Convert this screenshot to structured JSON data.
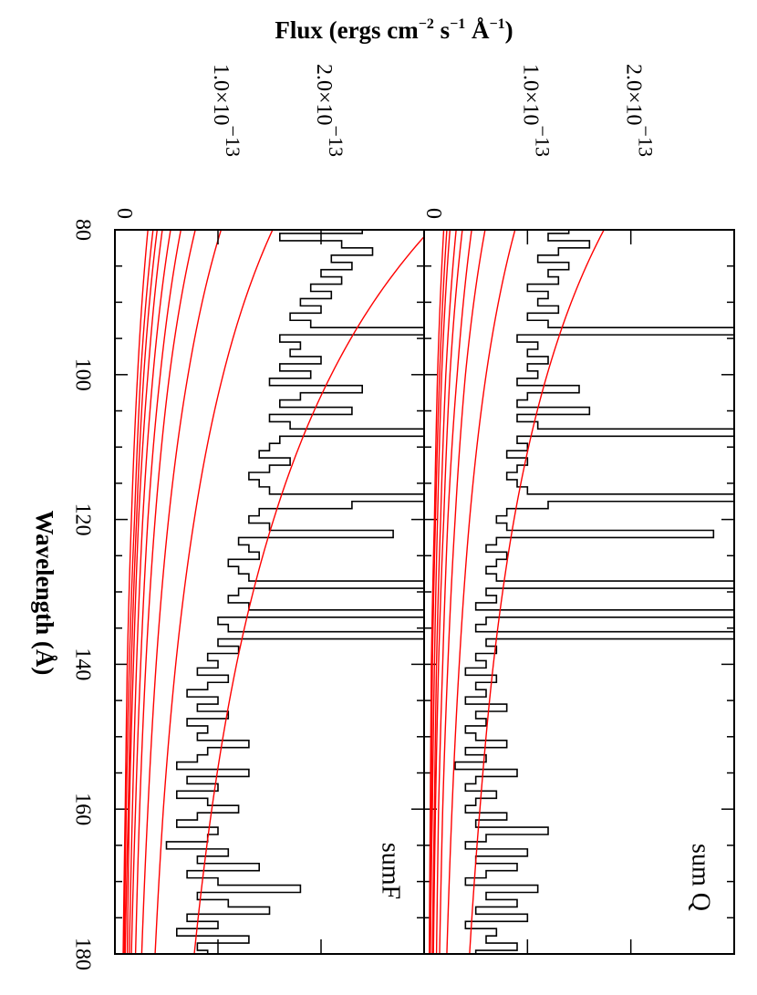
{
  "chart_data": {
    "type": "line",
    "orientation": "rotated 90 degrees clockwise",
    "xlabel": "Wavelength (Å)",
    "ylabel_main": "Flux (ergs cm",
    "ylabel_parts": [
      "Flux (ergs cm",
      "−2",
      " s",
      "−1",
      " Å",
      "−1",
      ")"
    ],
    "xlim": [
      80,
      180
    ],
    "x_ticks": [
      "80",
      "100",
      "120",
      "140",
      "160",
      "180"
    ],
    "x_tick_values": [
      80,
      100,
      120,
      140,
      160,
      180
    ],
    "x_minor_step": 5,
    "y_units": "1e-13",
    "y_tick_values": [
      0,
      1.0,
      2.0
    ],
    "y_tick_labels": [
      {
        "main": "0",
        "exp": ""
      },
      {
        "main": "1.0×10",
        "exp": "−13"
      },
      {
        "main": "2.0×10",
        "exp": "−13"
      }
    ],
    "grid": false,
    "panels": [
      {
        "label": "sumF",
        "ylim": [
          0,
          3.0
        ],
        "spectrum_color": "#000000",
        "spectrum": {
          "x_start": 80,
          "x_step": 1,
          "values": [
            2.4,
            1.6,
            2.2,
            2.5,
            2.1,
            2.3,
            2.0,
            2.2,
            1.9,
            2.1,
            1.8,
            2.0,
            1.7,
            1.9,
            3.5,
            1.6,
            1.8,
            1.7,
            2.0,
            1.6,
            1.9,
            1.5,
            2.4,
            1.8,
            1.6,
            2.3,
            1.5,
            1.7,
            3.5,
            1.6,
            1.5,
            1.4,
            1.7,
            1.5,
            1.3,
            1.4,
            1.5,
            3.5,
            2.3,
            1.4,
            1.3,
            1.5,
            2.7,
            1.2,
            1.3,
            1.4,
            1.1,
            1.2,
            1.3,
            3.5,
            1.2,
            1.1,
            1.3,
            3.5,
            1.0,
            1.1,
            3.5,
            1.0,
            1.2,
            0.9,
            1.0,
            0.8,
            1.1,
            0.9,
            0.7,
            1.0,
            0.8,
            1.1,
            0.7,
            0.9,
            0.8,
            1.3,
            0.9,
            0.8,
            0.6,
            1.3,
            0.7,
            1.0,
            0.6,
            0.9,
            1.2,
            0.8,
            0.6,
            1.0,
            0.9,
            0.5,
            1.1,
            0.8,
            1.4,
            0.7,
            1.0,
            1.8,
            0.8,
            1.1,
            1.5,
            0.7,
            1.0,
            0.6,
            1.3,
            0.8,
            0.9
          ]
        },
        "model_color": "#ff0000",
        "model_x": [
          80,
          100,
          120,
          140,
          160,
          180
        ],
        "models": [
          [
            3.06,
            2.1,
            1.54,
            1.18,
            0.94,
            0.77
          ],
          [
            1.53,
            1.05,
            0.77,
            0.59,
            0.47,
            0.39
          ],
          [
            1.03,
            0.71,
            0.52,
            0.4,
            0.32,
            0.26
          ],
          [
            0.78,
            0.53,
            0.39,
            0.3,
            0.24,
            0.2
          ],
          [
            0.64,
            0.44,
            0.32,
            0.25,
            0.2,
            0.16
          ],
          [
            0.54,
            0.37,
            0.27,
            0.21,
            0.17,
            0.14
          ],
          [
            0.46,
            0.32,
            0.23,
            0.18,
            0.14,
            0.12
          ],
          [
            0.41,
            0.28,
            0.21,
            0.16,
            0.13,
            0.1
          ],
          [
            0.37,
            0.25,
            0.19,
            0.14,
            0.11,
            0.09
          ],
          [
            0.32,
            0.22,
            0.16,
            0.12,
            0.1,
            0.08
          ]
        ]
      },
      {
        "label": "sum Q",
        "ylim": [
          0,
          3.0
        ],
        "spectrum_color": "#000000",
        "spectrum": {
          "x_start": 80,
          "x_step": 1,
          "values": [
            1.4,
            1.2,
            1.6,
            1.3,
            1.1,
            1.4,
            1.2,
            1.3,
            1.0,
            1.2,
            1.1,
            1.3,
            1.0,
            1.2,
            3.5,
            0.9,
            1.1,
            1.0,
            1.2,
            1.0,
            1.1,
            0.9,
            1.5,
            1.0,
            0.9,
            1.6,
            0.9,
            1.1,
            3.2,
            0.9,
            1.0,
            0.8,
            1.0,
            0.9,
            0.8,
            0.9,
            1.0,
            3.5,
            1.2,
            0.8,
            0.7,
            0.8,
            2.8,
            0.7,
            0.6,
            0.8,
            0.7,
            0.6,
            0.7,
            3.5,
            0.6,
            0.7,
            0.5,
            3.5,
            0.6,
            0.5,
            3.5,
            0.6,
            0.7,
            0.5,
            0.6,
            0.4,
            0.7,
            0.5,
            0.6,
            0.4,
            0.8,
            0.5,
            0.6,
            0.4,
            0.5,
            0.8,
            0.4,
            0.6,
            0.3,
            0.9,
            0.5,
            0.4,
            0.7,
            0.5,
            0.4,
            0.8,
            0.5,
            1.2,
            0.6,
            0.4,
            1.0,
            0.5,
            0.9,
            0.6,
            0.4,
            1.1,
            0.6,
            0.9,
            0.5,
            1.0,
            0.4,
            0.7,
            0.6,
            0.9,
            0.5
          ]
        },
        "model_color": "#ff0000",
        "model_x": [
          80,
          100,
          120,
          140,
          160,
          180
        ],
        "models": [
          [
            1.74,
            1.19,
            0.87,
            0.67,
            0.54,
            0.44
          ],
          [
            0.88,
            0.6,
            0.44,
            0.34,
            0.27,
            0.22
          ],
          [
            0.59,
            0.4,
            0.3,
            0.23,
            0.18,
            0.15
          ],
          [
            0.46,
            0.32,
            0.23,
            0.18,
            0.14,
            0.12
          ],
          [
            0.37,
            0.25,
            0.19,
            0.14,
            0.11,
            0.09
          ],
          [
            0.31,
            0.21,
            0.16,
            0.12,
            0.1,
            0.08
          ],
          [
            0.25,
            0.17,
            0.13,
            0.1,
            0.08,
            0.06
          ],
          [
            0.22,
            0.15,
            0.11,
            0.08,
            0.07,
            0.06
          ],
          [
            0.19,
            0.13,
            0.1,
            0.07,
            0.06,
            0.05
          ]
        ]
      }
    ]
  }
}
